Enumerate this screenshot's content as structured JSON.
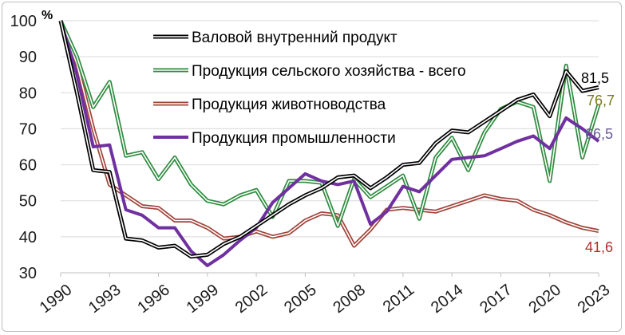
{
  "chart_data": {
    "type": "line",
    "unit_label": "%",
    "ylim": [
      30,
      100
    ],
    "yticks": [
      "30",
      "40",
      "50",
      "60",
      "70",
      "80",
      "90",
      "100"
    ],
    "xlim": [
      1990,
      2023
    ],
    "xticks": [
      "1990",
      "1993",
      "1996",
      "1999",
      "2002",
      "2005",
      "2008",
      "2011",
      "2014",
      "2017",
      "2020",
      "2023"
    ],
    "grid": true,
    "legend_position": "top",
    "x": [
      1990,
      1991,
      1992,
      1993,
      1994,
      1995,
      1996,
      1997,
      1998,
      1999,
      2000,
      2001,
      2002,
      2003,
      2004,
      2005,
      2006,
      2007,
      2008,
      2009,
      2010,
      2011,
      2012,
      2013,
      2014,
      2015,
      2016,
      2017,
      2018,
      2019,
      2020,
      2021,
      2022,
      2023
    ],
    "series": [
      {
        "name": "Валовой внутренний продукт",
        "color": "#000000",
        "style": "double",
        "values": [
          100,
          80,
          58.5,
          58,
          39.5,
          39,
          37,
          37.5,
          34.5,
          35,
          38,
          40,
          43,
          46,
          49,
          51.5,
          53.5,
          56.5,
          57,
          53.5,
          56.5,
          60,
          60.5,
          66,
          69.5,
          69,
          72,
          75,
          78,
          79.5,
          73.5,
          86,
          80.5,
          81.5
        ],
        "end_label": "81,5",
        "end_label_color": "#000000"
      },
      {
        "name": "Продукция сельского хозяйства - всего",
        "color": "#2e8b3e",
        "style": "double",
        "values": [
          100,
          90,
          76,
          83,
          62.5,
          63.5,
          56,
          62,
          54.5,
          50,
          49,
          51.5,
          53,
          45.5,
          55.5,
          55.5,
          55,
          43,
          56,
          51,
          54,
          57,
          45,
          62,
          67.5,
          58.5,
          69,
          75.5,
          77.5,
          76,
          55.5,
          87.5,
          62,
          76.7
        ],
        "end_label": "76,7",
        "end_label_color": "#7a7a14"
      },
      {
        "name": "Продукция животноводства",
        "color": "#a0443a",
        "style": "double",
        "values": [
          100,
          88,
          70,
          54.5,
          51.5,
          48.5,
          48,
          44.5,
          44.5,
          42.5,
          39.5,
          40,
          41.5,
          40,
          41,
          44.5,
          46.5,
          46,
          37.5,
          42,
          47.5,
          48,
          47.5,
          47,
          48.5,
          50,
          51.5,
          50.5,
          50,
          47.5,
          46,
          44,
          42.5,
          41.6
        ],
        "end_label": "41,6",
        "end_label_color": "#b03028"
      },
      {
        "name": "Продукция промышленности",
        "color": "#7030a0",
        "style": "single",
        "values": [
          100,
          85,
          65,
          65.5,
          47.5,
          46,
          42.5,
          42.5,
          36,
          32,
          35,
          39,
          42.5,
          49.5,
          53.5,
          57.5,
          55.5,
          54.5,
          55.5,
          43.5,
          47,
          54,
          52.5,
          57,
          61.5,
          62,
          62.5,
          64.5,
          66.5,
          68,
          64.5,
          73,
          70,
          66.5
        ],
        "end_label": "66,5",
        "end_label_color": "#6a5a9a"
      }
    ]
  }
}
